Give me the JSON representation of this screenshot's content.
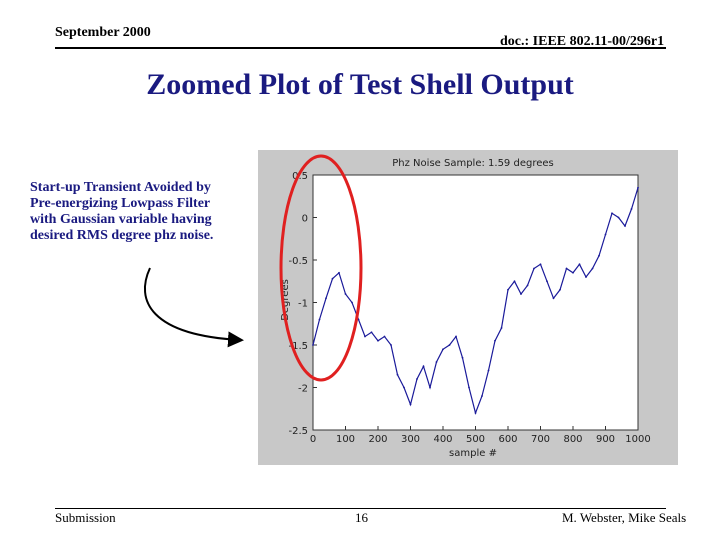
{
  "header": {
    "date": "September 2000",
    "doc_id": "doc.: IEEE 802.11-00/296r1"
  },
  "title": "Zoomed Plot of Test Shell Output",
  "caption": "Start-up Transient Avoided by\nPre-energizing Lowpass Filter\nwith Gaussian variable having\ndesired RMS degree phz noise.",
  "footer": {
    "left": "Submission",
    "page": "16",
    "right": "M. Webster, Mike Seals"
  },
  "colors": {
    "title": "#1a1a80",
    "trace": "#1a1a9a",
    "highlight": "#e02020"
  },
  "chart_data": {
    "type": "line",
    "title": "Phz Noise Sample: 1.59 degrees",
    "xlabel": "sample #",
    "ylabel": "Degrees",
    "xlim": [
      0,
      1000
    ],
    "ylim": [
      -2.5,
      0.5
    ],
    "xticks": [
      "0",
      "100",
      "200",
      "300",
      "400",
      "500",
      "600",
      "700",
      "800",
      "900",
      "1000"
    ],
    "yticks": [
      "0.5",
      "0",
      "-0.5",
      "-1",
      "-1.5",
      "-2",
      "-2.5"
    ],
    "grid": false,
    "series": [
      {
        "x": [
          0,
          20,
          40,
          60,
          80,
          100,
          120,
          140,
          160,
          180,
          200,
          220,
          240,
          260,
          280,
          300,
          320,
          340,
          360,
          380,
          400,
          420,
          440,
          460,
          480,
          500,
          520,
          540,
          560,
          580,
          600,
          620,
          640,
          660,
          680,
          700,
          720,
          740,
          760,
          780,
          800,
          820,
          840,
          860,
          880,
          900,
          920,
          940,
          960,
          980,
          1000
        ],
        "y": [
          -1.5,
          -1.2,
          -0.95,
          -0.72,
          -0.65,
          -0.9,
          -1.0,
          -1.2,
          -1.4,
          -1.35,
          -1.45,
          -1.4,
          -1.5,
          -1.85,
          -2.0,
          -2.2,
          -1.9,
          -1.75,
          -2.0,
          -1.7,
          -1.55,
          -1.5,
          -1.4,
          -1.65,
          -2.0,
          -2.3,
          -2.1,
          -1.8,
          -1.45,
          -1.3,
          -0.85,
          -0.75,
          -0.9,
          -0.8,
          -0.6,
          -0.55,
          -0.75,
          -0.95,
          -0.85,
          -0.6,
          -0.65,
          -0.55,
          -0.7,
          -0.6,
          -0.45,
          -0.2,
          0.05,
          0.0,
          -0.1,
          0.1,
          0.35
        ]
      }
    ]
  }
}
